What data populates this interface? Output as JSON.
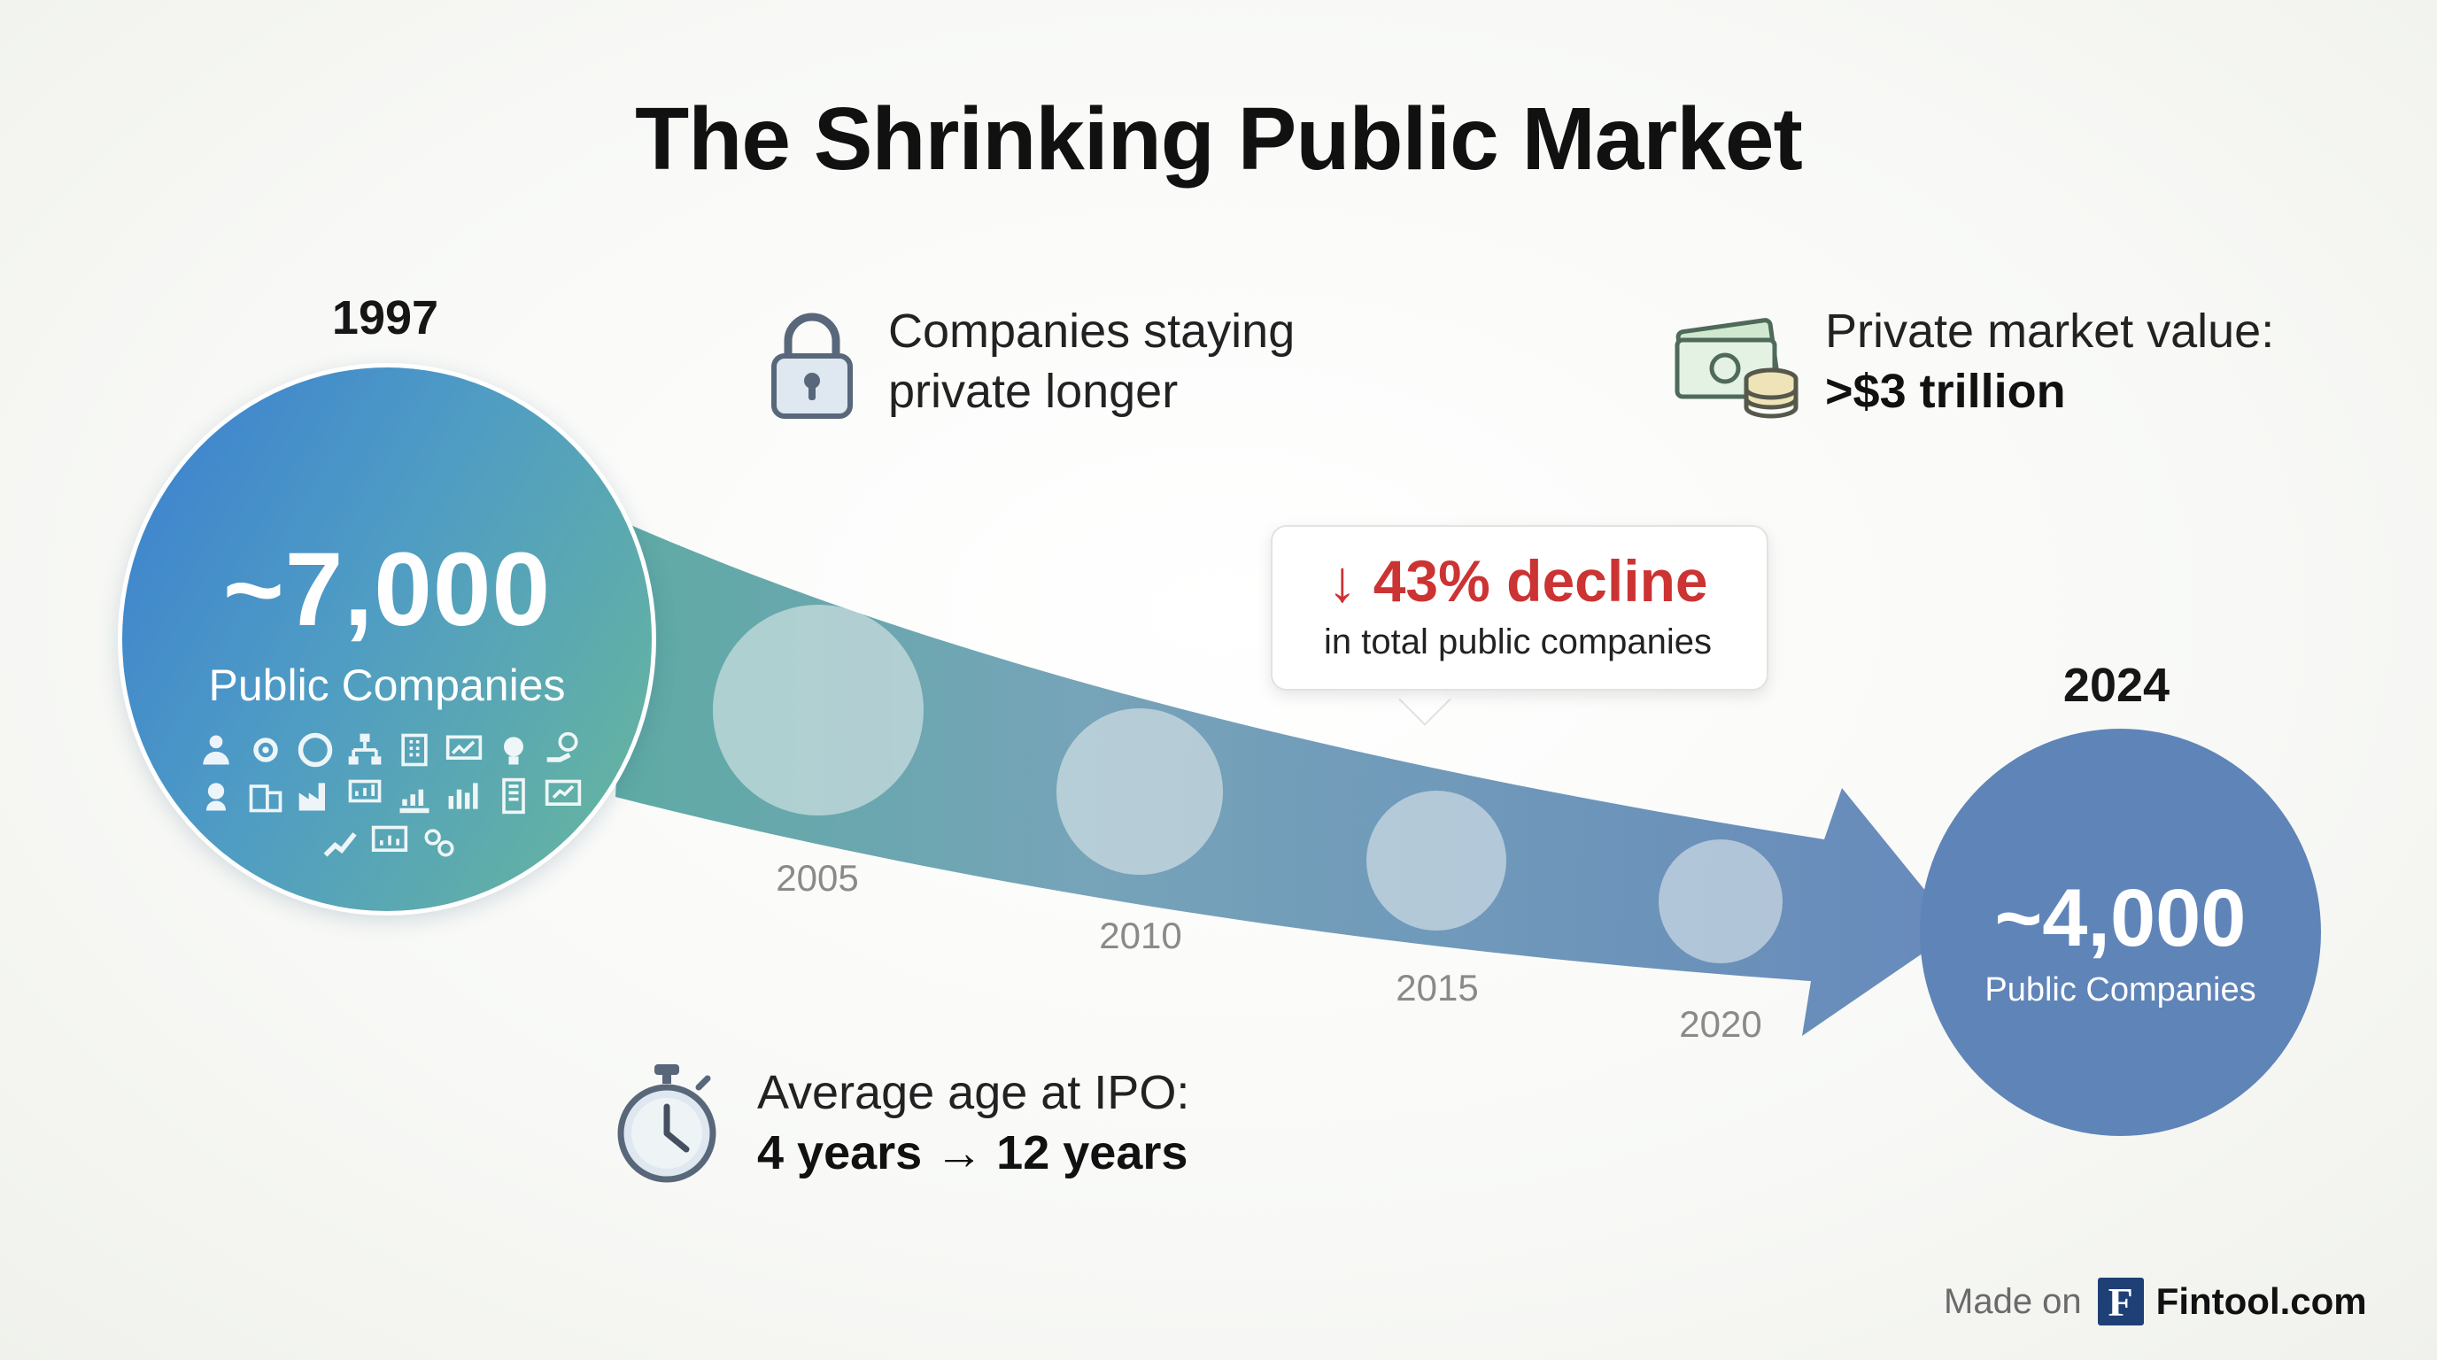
{
  "title": "The Shrinking Public Market",
  "start": {
    "year": "1997",
    "value": "~7,000",
    "label": "Public Companies",
    "color_from": "#3a7fd0",
    "color_to": "#69b89a"
  },
  "end": {
    "year": "2024",
    "value": "~4,000",
    "label": "Public Companies",
    "color": "#5f84b8"
  },
  "milestones": [
    "2005",
    "2010",
    "2015",
    "2020"
  ],
  "callout": {
    "headline": "↓ 43% decline",
    "subtext": "in total public companies",
    "accent": "#cc3333"
  },
  "info": {
    "private_longer": {
      "line1": "Companies staying",
      "line2": "private longer",
      "icon": "lock-icon"
    },
    "private_value": {
      "label": "Private market value:",
      "value": ">$3 trillion",
      "icon": "money-icon"
    },
    "ipo_age": {
      "label": "Average age at IPO:",
      "value": "4 years → 12 years",
      "icon": "stopwatch-icon"
    }
  },
  "footer": {
    "made_on": "Made on",
    "logo_letter": "F",
    "brand": "Fintool.com"
  }
}
